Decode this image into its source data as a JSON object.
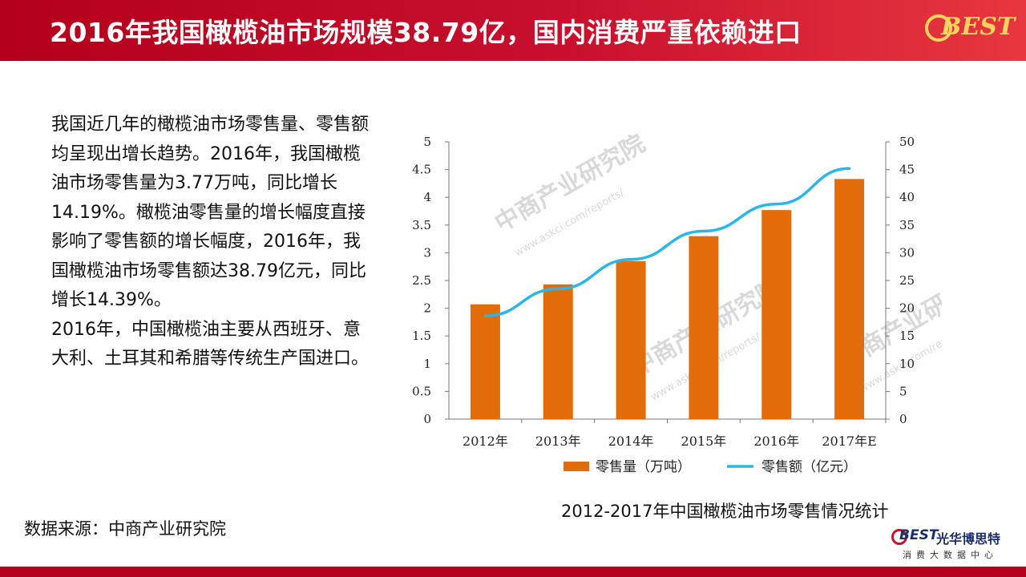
{
  "header": {
    "title": "2016年我国橄榄油市场规模38.79亿，国内消费严重依赖进口",
    "logo_text": "BEST"
  },
  "body": {
    "paragraph1": "我国近几年的橄榄油市场零售量、零售额均呈现出增长趋势。2016年，我国橄榄油市场零售量为3.77万吨，同比增长14.19%。橄榄油零售量的增长幅度直接影响了零售额的增长幅度，2016年，我国橄榄油市场零售额达38.79亿元，同比增长14.39%。",
    "paragraph2": "2016年，中国橄榄油主要从西班牙、意大利、土耳其和希腊等传统生产国进口。"
  },
  "source": "数据来源：中商产业研究院",
  "caption": "2012-2017年中国橄榄油市场零售情况统计",
  "watermark": {
    "text": "中商产业研究院",
    "url": "www.askci.com/reports/"
  },
  "footer_logo": {
    "brand": "BEST",
    "cn_name": "光华博思特",
    "subtitle": "消费大数据中心"
  },
  "colors": {
    "header_red": "#c8102e",
    "bar_orange": "#e36c0a",
    "line_blue": "#29b6e8"
  },
  "chart_data": {
    "type": "bar",
    "categories": [
      "2012年",
      "2013年",
      "2014年",
      "2015年",
      "2016年",
      "2017年E"
    ],
    "series": [
      {
        "name": "零售量（万吨）",
        "type": "bar",
        "axis": "left",
        "values": [
          2.07,
          2.43,
          2.85,
          3.3,
          3.77,
          4.33
        ],
        "color": "#e36c0a"
      },
      {
        "name": "零售额（亿元）",
        "type": "line",
        "axis": "right",
        "values": [
          18.6,
          23.5,
          28.8,
          33.9,
          38.79,
          45.2
        ],
        "color": "#29b6e8"
      }
    ],
    "y_left": {
      "min": 0,
      "max": 5,
      "ticks": [
        "0",
        "0.5",
        "1",
        "1.5",
        "2",
        "2.5",
        "3",
        "3.5",
        "4",
        "4.5",
        "5"
      ]
    },
    "y_right": {
      "min": 0,
      "max": 50,
      "ticks": [
        "0",
        "5",
        "10",
        "15",
        "20",
        "25",
        "30",
        "35",
        "40",
        "45",
        "50"
      ]
    },
    "legend_position": "bottom",
    "grid": false
  }
}
